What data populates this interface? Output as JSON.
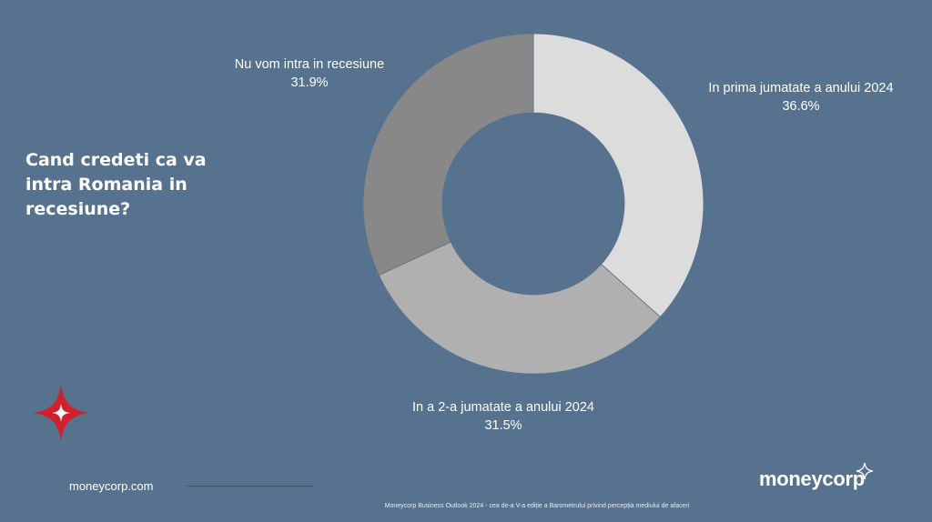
{
  "question": "Cand credeti ca va intra Romania in recesiune?",
  "chart_data": {
    "type": "pie",
    "variant": "donut",
    "title": "",
    "slices": [
      {
        "label": "In prima jumatate a anului 2024",
        "value": 36.6,
        "value_label": "36.6%",
        "color": "#dcdcdc"
      },
      {
        "label": "In a 2-a jumatate a anului 2024",
        "value": 31.5,
        "value_label": "31.5%",
        "color": "#b0b0b0"
      },
      {
        "label": "Nu vom intra in recesiune",
        "value": 31.9,
        "value_label": "31.9%",
        "color": "#888888"
      }
    ],
    "start_angle": "top, clockwise"
  },
  "footer": {
    "website": "moneycorp.com",
    "note": "Moneycorp Business Outlook 2024 - cea de-a V-a ediție a Barometrului privind percepția mediului de afaceri",
    "brand": "moneycorp"
  },
  "colors": {
    "background": "#56728e",
    "logo_red": "#d0202e"
  },
  "icons": [
    "four-point-star-logo-icon",
    "sparkle-icon"
  ]
}
